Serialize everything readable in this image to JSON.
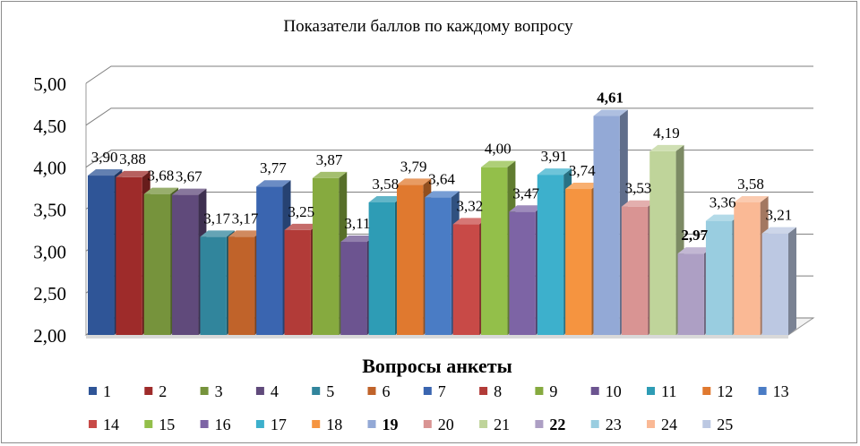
{
  "chart_data": {
    "type": "bar",
    "title": "Показатели  баллов по каждому вопросу",
    "xlabel": "Вопросы анкеты",
    "ylabel": "",
    "ylim": [
      2,
      5
    ],
    "yticks": [
      "2,00",
      "2,50",
      "3,00",
      "3,50",
      "4,00",
      "4,50",
      "5,00"
    ],
    "grid": true,
    "three_d": true,
    "legend_position": "bottom",
    "categories": [
      "1",
      "2",
      "3",
      "4",
      "5",
      "6",
      "7",
      "8",
      "9",
      "10",
      "11",
      "12",
      "13",
      "14",
      "15",
      "16",
      "17",
      "18",
      "19",
      "20",
      "21",
      "22",
      "23",
      "24",
      "25"
    ],
    "values": [
      3.9,
      3.88,
      3.68,
      3.67,
      3.17,
      3.17,
      3.77,
      3.25,
      3.87,
      3.11,
      3.58,
      3.79,
      3.64,
      3.32,
      4.0,
      3.47,
      3.91,
      3.74,
      4.61,
      3.53,
      4.19,
      2.97,
      3.36,
      3.58,
      3.21
    ],
    "value_labels": [
      "3,90",
      "3,88",
      "3,68",
      "3,67",
      "3,17",
      "3,17",
      "3,77",
      "3,25",
      "3,87",
      "3,11",
      "3,58",
      "3,79",
      "3,64",
      "3,32",
      "4,00",
      "3,47",
      "3,91",
      "3,74",
      "4,61",
      "3,53",
      "4,19",
      "2,97",
      "3,36",
      "3,58",
      "3,21"
    ],
    "bold_labels": [
      19,
      22
    ],
    "colors": [
      "#2f5597",
      "#9e2b2a",
      "#76933c",
      "#604a7b",
      "#31859c",
      "#c0632a",
      "#3a65b0",
      "#b23b38",
      "#86aa3f",
      "#6c5490",
      "#2e9cb5",
      "#e0792f",
      "#4a7cc5",
      "#c84a47",
      "#93bf4a",
      "#7d64a5",
      "#3db0cc",
      "#f59440",
      "#93a9d6",
      "#d99493",
      "#bfd49a",
      "#ad9fc4",
      "#99cde0",
      "#fab995",
      "#bcc8e2"
    ],
    "legend": [
      "1",
      "2",
      "3",
      "4",
      "5",
      "6",
      "7",
      "8",
      "9",
      "10",
      "11",
      "12",
      "13",
      "14",
      "15",
      "16",
      "17",
      "18",
      "19",
      "20",
      "21",
      "22",
      "23",
      "24",
      "25"
    ]
  }
}
